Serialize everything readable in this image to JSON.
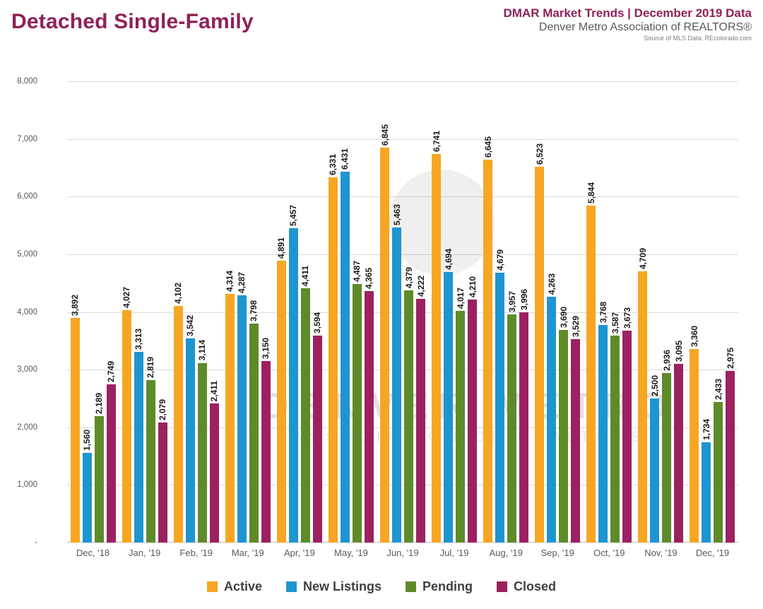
{
  "header": {
    "title": "Detached Single-Family",
    "right_line1": "DMAR Market Trends | December 2019 Data",
    "right_line2": "Denver Metro Association of REALTORS®",
    "right_line3": "Source of MLS Data: REcolorado.com"
  },
  "watermark": {
    "line1": "DENVER METRO",
    "line2": "ASSOCIATION OF REALTORS"
  },
  "colors": {
    "title_accent": "#8E2157",
    "active": "#F6A623",
    "new_listings": "#1E95D0",
    "pending": "#5F8A2A",
    "closed": "#9C2160",
    "grid": "#D9D9D9",
    "axis_text": "#595959",
    "bar_label": "#1A1A1A"
  },
  "chart_data": {
    "type": "bar",
    "title": "Detached Single-Family",
    "xlabel": "",
    "ylabel": "",
    "ylim": [
      0,
      8000
    ],
    "ytick_step": 1000,
    "ytick_zero_label": "-",
    "grid": true,
    "legend_position": "bottom",
    "categories": [
      "Dec, '18",
      "Jan, '19",
      "Feb, '19",
      "Mar, '19",
      "Apr, '19",
      "May, '19",
      "Jun, '19",
      "Jul, '19",
      "Aug, '19",
      "Sep, '19",
      "Oct, '19",
      "Nov, '19",
      "Dec, '19"
    ],
    "series": [
      {
        "name": "Active",
        "color": "#F6A623",
        "values": [
          3892,
          4027,
          4102,
          4314,
          4891,
          6331,
          6845,
          6741,
          6645,
          6523,
          5844,
          4709,
          3360
        ]
      },
      {
        "name": "New Listings",
        "color": "#1E95D0",
        "values": [
          1560,
          3313,
          3542,
          4287,
          5457,
          6431,
          5463,
          4694,
          4679,
          4263,
          3768,
          2500,
          1734
        ]
      },
      {
        "name": "Pending",
        "color": "#5F8A2A",
        "values": [
          2189,
          2819,
          3114,
          3798,
          4411,
          4487,
          4379,
          4017,
          3957,
          3690,
          3587,
          2936,
          2433
        ]
      },
      {
        "name": "Closed",
        "color": "#9C2160",
        "values": [
          2749,
          2079,
          2411,
          3150,
          3594,
          4365,
          4222,
          4210,
          3996,
          3529,
          3673,
          3095,
          2975
        ]
      }
    ]
  }
}
